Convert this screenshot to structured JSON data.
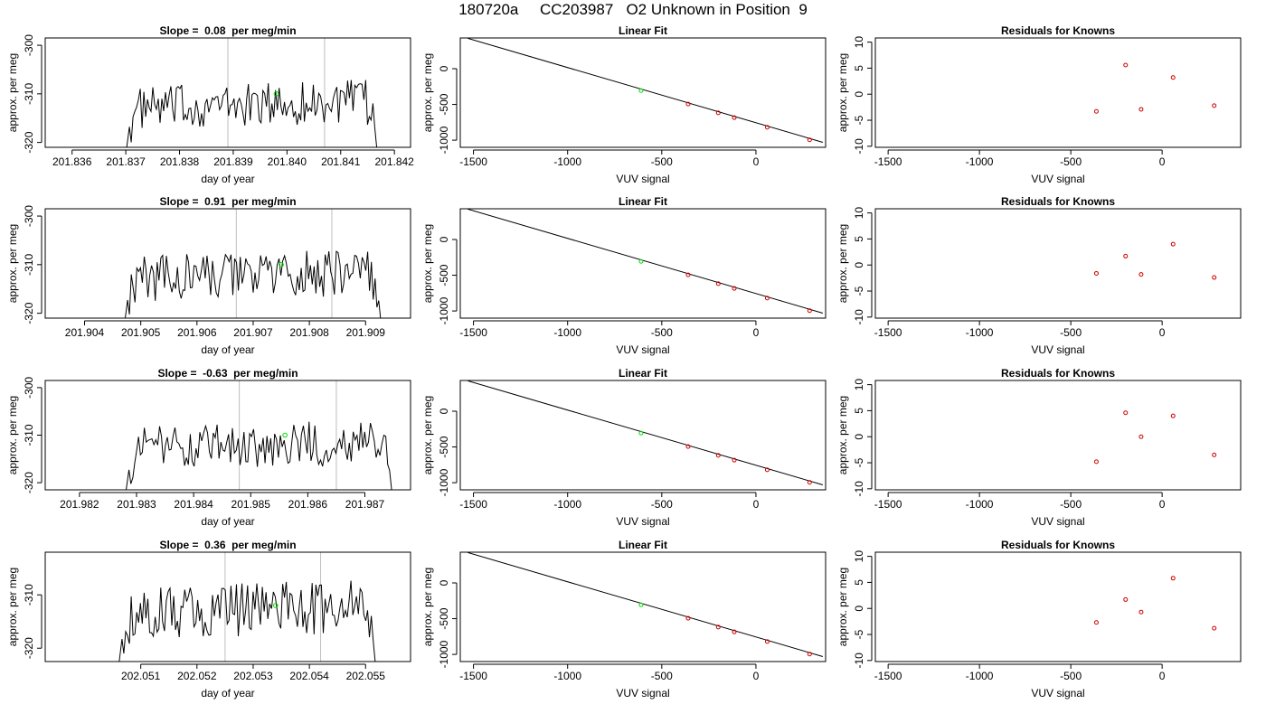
{
  "page_title": "180720a     CC203987   O2 Unknown in Position  9",
  "colors": {
    "line": "#000000",
    "unknown_point": "#00dd00",
    "known_point": "#cc0000",
    "vertical_marker": "#bebebe"
  },
  "chart_data": [
    {
      "type": "line",
      "title": "Slope =  0.08  per meg/min",
      "xlabel": "day of year",
      "ylabel": "approx. per meg",
      "xlim": [
        201.8355,
        201.8423
      ],
      "ylim": [
        -321,
        -298.5
      ],
      "xticks": [
        201.836,
        201.837,
        201.838,
        201.839,
        201.84,
        201.841,
        201.842
      ],
      "xtick_labels": [
        "201.836",
        "201.837",
        "201.838",
        "201.839",
        "201.840",
        "201.841",
        "201.842"
      ],
      "yticks": [
        -320,
        -310,
        -300
      ],
      "ytick_labels": [
        "-320",
        "-310",
        "-300"
      ],
      "vlines": [
        201.8389,
        201.8407
      ],
      "series_x": [
        201.837,
        201.8417
      ],
      "series_range": [
        -320.5,
        -305.5
      ],
      "unknown_point": {
        "x": 201.8398,
        "y": -310
      }
    },
    {
      "type": "scatter",
      "title": "Linear Fit",
      "xlabel": "VUV signal",
      "ylabel": "approx. per meg",
      "xlim": [
        -1570,
        370
      ],
      "ylim": [
        -1100,
        430
      ],
      "xticks": [
        -1500,
        -1000,
        -500,
        0
      ],
      "xtick_labels": [
        "-1500",
        "-1000",
        "-500",
        "0"
      ],
      "yticks": [
        -1000,
        -500,
        0
      ],
      "ytick_labels": [
        "-1000",
        "-500",
        "0"
      ],
      "fit_line": [
        [
          -1530,
          425
        ],
        [
          355,
          -1030
        ]
      ],
      "knowns": [
        [
          -360,
          -495
        ],
        [
          -200,
          -618
        ],
        [
          -115,
          -685
        ],
        [
          60,
          -820
        ],
        [
          285,
          -995
        ]
      ],
      "unknown": [
        -610,
        -306
      ]
    },
    {
      "type": "scatter",
      "title": "Residuals for Knowns",
      "xlabel": "VUV signal",
      "ylabel": "approx. per meg",
      "xlim": [
        -1570,
        430
      ],
      "ylim": [
        -10.2,
        10.8
      ],
      "xticks": [
        -1500,
        -1000,
        -500,
        0
      ],
      "xtick_labels": [
        "-1500",
        "-1000",
        "-500",
        "0"
      ],
      "yticks": [
        -10,
        -5,
        0,
        5,
        10
      ],
      "ytick_labels": [
        "-10",
        "-5",
        "0",
        "5",
        "10"
      ],
      "points": [
        [
          -360,
          -3.3
        ],
        [
          -200,
          5.6
        ],
        [
          -115,
          -2.9
        ],
        [
          60,
          3.2
        ],
        [
          285,
          -2.2
        ]
      ]
    },
    {
      "type": "line",
      "title": "Slope =  0.91  per meg/min",
      "xlabel": "day of year",
      "ylabel": "approx. per meg",
      "xlim": [
        201.9033,
        201.9098
      ],
      "ylim": [
        -321,
        -298.5
      ],
      "xticks": [
        201.904,
        201.905,
        201.906,
        201.907,
        201.908,
        201.909
      ],
      "xtick_labels": [
        "201.904",
        "201.905",
        "201.906",
        "201.907",
        "201.908",
        "201.909"
      ],
      "yticks": [
        -320,
        -310,
        -300
      ],
      "ytick_labels": [
        "-320",
        "-310",
        "-300"
      ],
      "vlines": [
        201.9067,
        201.9084
      ],
      "series_x": [
        201.9047,
        201.9093
      ],
      "series_range": [
        -321,
        -305
      ],
      "unknown_point": {
        "x": 201.9075,
        "y": -310
      }
    },
    {
      "type": "scatter",
      "title": "Linear Fit",
      "xlabel": "VUV signal",
      "ylabel": "approx. per meg",
      "xlim": [
        -1570,
        370
      ],
      "ylim": [
        -1100,
        430
      ],
      "xticks": [
        -1500,
        -1000,
        -500,
        0
      ],
      "xtick_labels": [
        "-1500",
        "-1000",
        "-500",
        "0"
      ],
      "yticks": [
        -1000,
        -500,
        0
      ],
      "ytick_labels": [
        "-1000",
        "-500",
        "0"
      ],
      "fit_line": [
        [
          -1530,
          425
        ],
        [
          355,
          -1030
        ]
      ],
      "knowns": [
        [
          -360,
          -495
        ],
        [
          -200,
          -618
        ],
        [
          -115,
          -685
        ],
        [
          60,
          -820
        ],
        [
          285,
          -995
        ]
      ],
      "unknown": [
        -610,
        -306
      ]
    },
    {
      "type": "scatter",
      "title": "Residuals for Knowns",
      "xlabel": "VUV signal",
      "ylabel": "approx. per meg",
      "xlim": [
        -1570,
        430
      ],
      "ylim": [
        -10.2,
        10.8
      ],
      "xticks": [
        -1500,
        -1000,
        -500,
        0
      ],
      "xtick_labels": [
        "-1500",
        "-1000",
        "-500",
        "0"
      ],
      "yticks": [
        -10,
        -5,
        0,
        5,
        10
      ],
      "ytick_labels": [
        "-10",
        "-5",
        "0",
        "5",
        "10"
      ],
      "points": [
        [
          -360,
          -1.6
        ],
        [
          -200,
          1.7
        ],
        [
          -115,
          -1.8
        ],
        [
          60,
          4.0
        ],
        [
          285,
          -2.4
        ]
      ]
    },
    {
      "type": "line",
      "title": "Slope =  -0.63  per meg/min",
      "xlabel": "day of year",
      "ylabel": "approx. per meg",
      "xlim": [
        201.9814,
        201.9878
      ],
      "ylim": [
        -321.5,
        -298.5
      ],
      "xticks": [
        201.982,
        201.983,
        201.984,
        201.985,
        201.986,
        201.987
      ],
      "xtick_labels": [
        "201.982",
        "201.983",
        "201.984",
        "201.985",
        "201.986",
        "201.987"
      ],
      "yticks": [
        -320,
        -310,
        -300
      ],
      "ytick_labels": [
        "-320",
        "-310",
        "-300"
      ],
      "vlines": [
        201.9848,
        201.9865
      ],
      "series_x": [
        201.9828,
        201.9875
      ],
      "series_range": [
        -321,
        -305
      ],
      "unknown_point": {
        "x": 201.9856,
        "y": -310
      }
    },
    {
      "type": "scatter",
      "title": "Linear Fit",
      "xlabel": "VUV signal",
      "ylabel": "approx. per meg",
      "xlim": [
        -1570,
        370
      ],
      "ylim": [
        -1100,
        430
      ],
      "xticks": [
        -1500,
        -1000,
        -500,
        0
      ],
      "xtick_labels": [
        "-1500",
        "-1000",
        "-500",
        "0"
      ],
      "yticks": [
        -1000,
        -500,
        0
      ],
      "ytick_labels": [
        "-1000",
        "-500",
        "0"
      ],
      "fit_line": [
        [
          -1530,
          425
        ],
        [
          355,
          -1030
        ]
      ],
      "knowns": [
        [
          -360,
          -495
        ],
        [
          -200,
          -618
        ],
        [
          -115,
          -685
        ],
        [
          60,
          -820
        ],
        [
          285,
          -995
        ]
      ],
      "unknown": [
        -610,
        -306
      ]
    },
    {
      "type": "scatter",
      "title": "Residuals for Knowns",
      "xlabel": "VUV signal",
      "ylabel": "approx. per meg",
      "xlim": [
        -1570,
        430
      ],
      "ylim": [
        -10.2,
        10.8
      ],
      "xticks": [
        -1500,
        -1000,
        -500,
        0
      ],
      "xtick_labels": [
        "-1500",
        "-1000",
        "-500",
        "0"
      ],
      "yticks": [
        -10,
        -5,
        0,
        5,
        10
      ],
      "ytick_labels": [
        "-10",
        "-5",
        "0",
        "5",
        "10"
      ],
      "points": [
        [
          -360,
          -4.8
        ],
        [
          -200,
          4.6
        ],
        [
          -115,
          0.0
        ],
        [
          60,
          4.0
        ],
        [
          285,
          -3.5
        ]
      ]
    },
    {
      "type": "line",
      "title": "Slope =  0.36  per meg/min",
      "xlabel": "day of year",
      "ylabel": "approx. per meg",
      "xlim": [
        202.0493,
        202.0558
      ],
      "ylim": [
        -322.5,
        -302
      ],
      "xticks": [
        202.051,
        202.052,
        202.053,
        202.054,
        202.055
      ],
      "xtick_labels": [
        "202.051",
        "202.052",
        "202.053",
        "202.054",
        "202.055"
      ],
      "yticks": [
        -320,
        -310
      ],
      "ytick_labels": [
        "-320",
        "-310"
      ],
      "vlines": [
        202.0525,
        202.0542
      ],
      "series_x": [
        202.0506,
        202.0552
      ],
      "series_range": [
        -322,
        -305
      ],
      "unknown_point": {
        "x": 202.0534,
        "y": -312
      }
    },
    {
      "type": "scatter",
      "title": "Linear Fit",
      "xlabel": "VUV signal",
      "ylabel": "approx. per meg",
      "xlim": [
        -1570,
        370
      ],
      "ylim": [
        -1100,
        430
      ],
      "xticks": [
        -1500,
        -1000,
        -500,
        0
      ],
      "xtick_labels": [
        "-1500",
        "-1000",
        "-500",
        "0"
      ],
      "yticks": [
        -1000,
        -500,
        0
      ],
      "ytick_labels": [
        "-1000",
        "-500",
        "0"
      ],
      "fit_line": [
        [
          -1530,
          425
        ],
        [
          355,
          -1030
        ]
      ],
      "knowns": [
        [
          -360,
          -495
        ],
        [
          -200,
          -618
        ],
        [
          -115,
          -685
        ],
        [
          60,
          -820
        ],
        [
          285,
          -995
        ]
      ],
      "unknown": [
        -610,
        -306
      ]
    },
    {
      "type": "scatter",
      "title": "Residuals for Knowns",
      "xlabel": "VUV signal",
      "ylabel": "approx. per meg",
      "xlim": [
        -1570,
        430
      ],
      "ylim": [
        -10.2,
        10.8
      ],
      "xticks": [
        -1500,
        -1000,
        -500,
        0
      ],
      "xtick_labels": [
        "-1500",
        "-1000",
        "-500",
        "0"
      ],
      "yticks": [
        -10,
        -5,
        0,
        5,
        10
      ],
      "ytick_labels": [
        "-10",
        "-5",
        "0",
        "5",
        "10"
      ],
      "points": [
        [
          -360,
          -2.7
        ],
        [
          -200,
          1.7
        ],
        [
          -115,
          -0.7
        ],
        [
          60,
          5.8
        ],
        [
          285,
          -3.8
        ]
      ]
    }
  ]
}
